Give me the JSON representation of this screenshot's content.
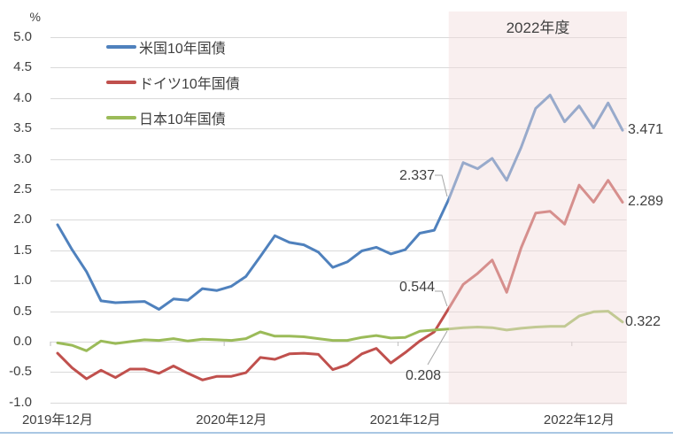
{
  "chart_data": {
    "type": "line",
    "title": "",
    "y_unit": "%",
    "ylim": [
      -1.0,
      5.0
    ],
    "y_tick_step": 0.5,
    "grid": true,
    "legend_position": "top-left",
    "n_points": 40,
    "x_frequency": "monthly",
    "x_ticks": [
      {
        "label": "2019年12月",
        "month": 0
      },
      {
        "label": "2020年12月",
        "month": 12
      },
      {
        "label": "2021年12月",
        "month": 24
      },
      {
        "label": "2022年12月",
        "month": 36
      }
    ],
    "y_ticks": [
      {
        "label": "5.0",
        "value": 5.0
      },
      {
        "label": "4.5",
        "value": 4.5
      },
      {
        "label": "4.0",
        "value": 4.0
      },
      {
        "label": "3.5",
        "value": 3.5
      },
      {
        "label": "3.0",
        "value": 3.0
      },
      {
        "label": "2.5",
        "value": 2.5
      },
      {
        "label": "2.0",
        "value": 2.0
      },
      {
        "label": "1.5",
        "value": 1.5
      },
      {
        "label": "1.0",
        "value": 1.0
      },
      {
        "label": "0.5",
        "value": 0.5
      },
      {
        "label": "0.0",
        "value": 0.0
      },
      {
        "label": "-0.5",
        "value": -0.5
      },
      {
        "label": "-1.0",
        "value": -1.0
      }
    ],
    "region": {
      "label": "2022年度",
      "start_month": 27,
      "end_month": 39
    },
    "series": [
      {
        "name": "米国10年国債",
        "color": "#4F81BD",
        "values": [
          1.92,
          1.51,
          1.15,
          0.67,
          0.64,
          0.65,
          0.66,
          0.53,
          0.7,
          0.68,
          0.87,
          0.84,
          0.91,
          1.07,
          1.4,
          1.74,
          1.63,
          1.59,
          1.47,
          1.22,
          1.31,
          1.49,
          1.55,
          1.44,
          1.51,
          1.78,
          1.83,
          2.337,
          2.94,
          2.84,
          3.01,
          2.65,
          3.19,
          3.83,
          4.05,
          3.61,
          3.87,
          3.51,
          3.92,
          3.471
        ]
      },
      {
        "name": "ドイツ10年国債",
        "color": "#C0504D",
        "values": [
          -0.19,
          -0.43,
          -0.61,
          -0.47,
          -0.59,
          -0.45,
          -0.45,
          -0.52,
          -0.4,
          -0.52,
          -0.63,
          -0.57,
          -0.57,
          -0.51,
          -0.26,
          -0.29,
          -0.2,
          -0.19,
          -0.21,
          -0.46,
          -0.38,
          -0.2,
          -0.11,
          -0.35,
          -0.18,
          0.01,
          0.16,
          0.544,
          0.94,
          1.12,
          1.34,
          0.81,
          1.54,
          2.11,
          2.14,
          1.93,
          2.57,
          2.29,
          2.65,
          2.289
        ]
      },
      {
        "name": "日本10年国債",
        "color": "#9BBB59",
        "values": [
          -0.02,
          -0.06,
          -0.15,
          0.01,
          -0.03,
          0.0,
          0.03,
          0.02,
          0.05,
          0.01,
          0.04,
          0.03,
          0.02,
          0.05,
          0.16,
          0.09,
          0.09,
          0.08,
          0.05,
          0.02,
          0.02,
          0.07,
          0.1,
          0.06,
          0.07,
          0.17,
          0.19,
          0.208,
          0.23,
          0.24,
          0.23,
          0.19,
          0.22,
          0.24,
          0.25,
          0.25,
          0.42,
          0.49,
          0.5,
          0.322
        ]
      }
    ],
    "annotations": {
      "boundary": [
        "2.337",
        "0.544",
        "0.208"
      ],
      "end": [
        "3.471",
        "2.289",
        "0.322"
      ]
    }
  },
  "colors": {
    "gridline": "#D9D9D9",
    "axis_tick": "#BFBFBF",
    "region_fill": "#F2DCDB",
    "region_opacity": 0.45,
    "leader_line": "#A6A6A6",
    "text": "#404040",
    "bottom_border": "#A9C7E3"
  }
}
